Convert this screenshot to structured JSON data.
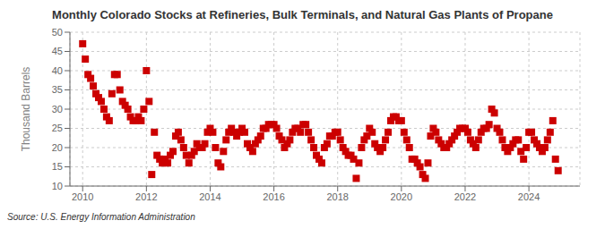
{
  "chart_data": {
    "type": "scatter",
    "title": "Monthly Colorado Stocks at Refineries, Bulk Terminals, and Natural Gas Plants of Propane",
    "ylabel": "Thousand Barrels",
    "annotations": [
      "Source: U.S. Energy Information Administration"
    ],
    "color": "#CC0000",
    "marker": "square",
    "grid": true,
    "xlim": [
      2009.6,
      2025.6
    ],
    "xticks": [
      2010,
      2012,
      2014,
      2016,
      2018,
      2020,
      2022,
      2024
    ],
    "ylim": [
      10,
      50
    ],
    "yticks": [
      10,
      15,
      20,
      25,
      30,
      35,
      40,
      45,
      50
    ],
    "x": [
      2010.0,
      2010.083,
      2010.167,
      2010.25,
      2010.333,
      2010.417,
      2010.5,
      2010.583,
      2010.667,
      2010.75,
      2010.833,
      2010.917,
      2011.0,
      2011.083,
      2011.167,
      2011.25,
      2011.333,
      2011.417,
      2011.5,
      2011.583,
      2011.667,
      2011.75,
      2011.833,
      2011.917,
      2012.0,
      2012.083,
      2012.167,
      2012.25,
      2012.333,
      2012.417,
      2012.5,
      2012.583,
      2012.667,
      2012.75,
      2012.833,
      2012.917,
      2013.0,
      2013.083,
      2013.167,
      2013.25,
      2013.333,
      2013.417,
      2013.5,
      2013.583,
      2013.667,
      2013.75,
      2013.833,
      2013.917,
      2014.0,
      2014.083,
      2014.167,
      2014.25,
      2014.333,
      2014.417,
      2014.5,
      2014.583,
      2014.667,
      2014.75,
      2014.833,
      2014.917,
      2015.0,
      2015.083,
      2015.167,
      2015.25,
      2015.333,
      2015.417,
      2015.5,
      2015.583,
      2015.667,
      2015.75,
      2015.833,
      2015.917,
      2016.0,
      2016.083,
      2016.167,
      2016.25,
      2016.333,
      2016.417,
      2016.5,
      2016.583,
      2016.667,
      2016.75,
      2016.833,
      2016.917,
      2017.0,
      2017.083,
      2017.167,
      2017.25,
      2017.333,
      2017.417,
      2017.5,
      2017.583,
      2017.667,
      2017.75,
      2017.833,
      2017.917,
      2018.0,
      2018.083,
      2018.167,
      2018.25,
      2018.333,
      2018.417,
      2018.5,
      2018.583,
      2018.667,
      2018.75,
      2018.833,
      2018.917,
      2019.0,
      2019.083,
      2019.167,
      2019.25,
      2019.333,
      2019.417,
      2019.5,
      2019.583,
      2019.667,
      2019.75,
      2019.833,
      2019.917,
      2020.0,
      2020.083,
      2020.167,
      2020.25,
      2020.333,
      2020.417,
      2020.5,
      2020.583,
      2020.667,
      2020.75,
      2020.833,
      2020.917,
      2021.0,
      2021.083,
      2021.167,
      2021.25,
      2021.333,
      2021.417,
      2021.5,
      2021.583,
      2021.667,
      2021.75,
      2021.833,
      2021.917,
      2022.0,
      2022.083,
      2022.167,
      2022.25,
      2022.333,
      2022.417,
      2022.5,
      2022.583,
      2022.667,
      2022.75,
      2022.833,
      2022.917,
      2023.0,
      2023.083,
      2023.167,
      2023.25,
      2023.333,
      2023.417,
      2023.5,
      2023.583,
      2023.667,
      2023.75,
      2023.833,
      2023.917,
      2024.0,
      2024.083,
      2024.167,
      2024.25,
      2024.333,
      2024.417,
      2024.5,
      2024.583,
      2024.667,
      2024.75,
      2024.833,
      2024.917
    ],
    "values": [
      47,
      43,
      39,
      38,
      36,
      34,
      33,
      32,
      30,
      28,
      27,
      34,
      39,
      39,
      35,
      32,
      31,
      30,
      28,
      27,
      27,
      28,
      27,
      30,
      40,
      32,
      13,
      24,
      18,
      17,
      16,
      17,
      16,
      18,
      19,
      23,
      24,
      22,
      20,
      18,
      16,
      18,
      19,
      21,
      20,
      20,
      21,
      24,
      25,
      24,
      20,
      16,
      15,
      19,
      22,
      24,
      25,
      24,
      23,
      24,
      25,
      24,
      21,
      20,
      19,
      21,
      22,
      23,
      25,
      25,
      26,
      26,
      26,
      25,
      23,
      22,
      20,
      21,
      22,
      24,
      25,
      25,
      24,
      26,
      26,
      24,
      22,
      20,
      18,
      17,
      16,
      20,
      21,
      23,
      23,
      24,
      24,
      22,
      20,
      19,
      18,
      18,
      17,
      12,
      16,
      20,
      22,
      23,
      25,
      24,
      21,
      20,
      19,
      20,
      22,
      24,
      27,
      28,
      28,
      27,
      27,
      24,
      22,
      20,
      17,
      17,
      16,
      15,
      13,
      12,
      16,
      23,
      25,
      24,
      22,
      21,
      20,
      20,
      21,
      22,
      23,
      24,
      25,
      25,
      25,
      24,
      22,
      21,
      20,
      22,
      24,
      25,
      25,
      26,
      30,
      29,
      25,
      24,
      22,
      20,
      19,
      20,
      21,
      22,
      22,
      19,
      17,
      20,
      24,
      24,
      22,
      21,
      20,
      19,
      20,
      22,
      24,
      27,
      17,
      14
    ]
  }
}
